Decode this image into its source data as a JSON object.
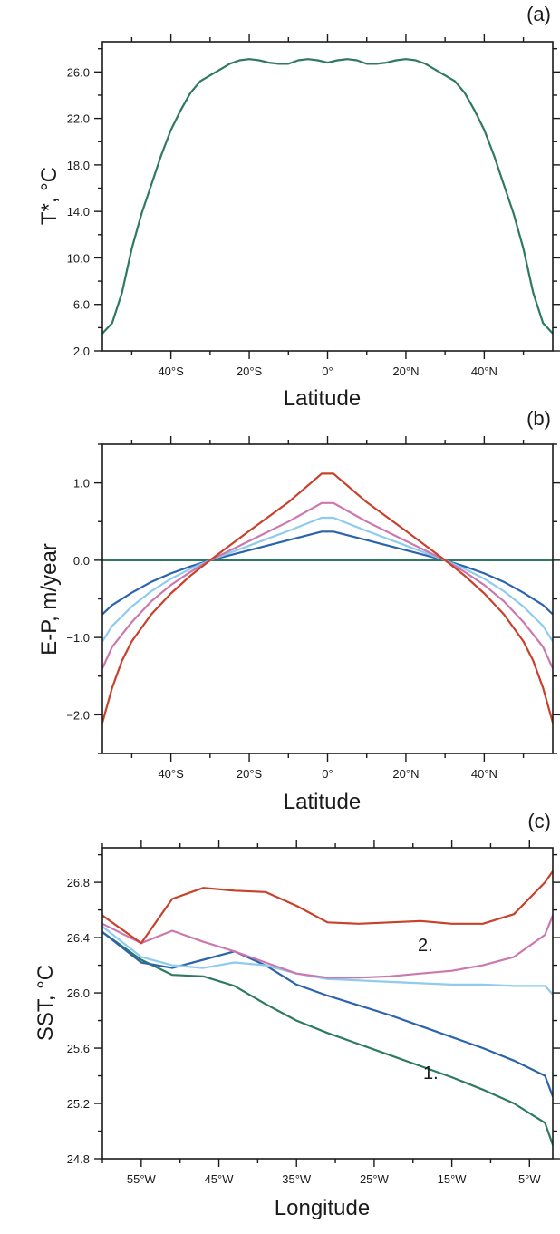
{
  "chart_data": [
    {
      "panel_label": "(a)",
      "type": "line",
      "ylabel": "T*, °C",
      "xlabel": "Latitude",
      "xlim": [
        -57.5,
        57.5
      ],
      "ylim": [
        2.0,
        28.6
      ],
      "x_ticks": [
        -40,
        -20,
        0,
        20,
        40
      ],
      "x_tick_labels": [
        "40°S",
        "20°S",
        "0°",
        "20°N",
        "40°N"
      ],
      "y_ticks": [
        2.0,
        6.0,
        10.0,
        14.0,
        18.0,
        22.0,
        26.0
      ],
      "y_tick_labels": [
        "2.0",
        "6.0",
        "10.0",
        "14.0",
        "18.0",
        "22.0",
        "26.0"
      ],
      "grid": false,
      "series": [
        {
          "color": "#2e7a5f",
          "x": [
            -57.5,
            -55,
            -52.5,
            -50,
            -47.5,
            -45,
            -42.5,
            -40,
            -37.5,
            -35,
            -32.5,
            -30,
            -27.5,
            -25,
            -22.5,
            -20,
            -17.5,
            -15,
            -12.5,
            -10,
            -7.5,
            -5,
            -2.5,
            0,
            2.5,
            5,
            7.5,
            10,
            12.5,
            15,
            17.5,
            20,
            22.5,
            25,
            27.5,
            30,
            32.5,
            35,
            37.5,
            40,
            42.5,
            45,
            47.5,
            50,
            52.5,
            55,
            57.5
          ],
          "y": [
            3.5,
            4.4,
            7.0,
            10.8,
            13.8,
            16.3,
            18.8,
            21.0,
            22.7,
            24.2,
            25.2,
            25.7,
            26.2,
            26.7,
            27.0,
            27.1,
            27.0,
            26.8,
            26.7,
            26.7,
            27.0,
            27.1,
            27.0,
            26.8,
            27.0,
            27.1,
            27.0,
            26.7,
            26.7,
            26.8,
            27.0,
            27.1,
            27.0,
            26.7,
            26.2,
            25.7,
            25.2,
            24.2,
            22.7,
            21.0,
            18.8,
            16.3,
            13.8,
            10.8,
            7.0,
            4.4,
            3.5
          ]
        }
      ]
    },
    {
      "panel_label": "(b)",
      "type": "line",
      "ylabel": "E-P, m/year",
      "xlabel": "Latitude",
      "xlim": [
        -57.5,
        57.5
      ],
      "ylim": [
        -2.5,
        1.5
      ],
      "x_ticks": [
        -40,
        -20,
        0,
        20,
        40
      ],
      "x_tick_labels": [
        "40°S",
        "20°S",
        "0°",
        "20°N",
        "40°N"
      ],
      "y_ticks": [
        -2.0,
        -1.0,
        0.0,
        1.0
      ],
      "y_tick_labels": [
        "−2.0",
        "−1.0",
        "0.0",
        "1.0"
      ],
      "grid": false,
      "series": [
        {
          "color": "#2e7a5f",
          "x": [
            -57.5,
            57.5
          ],
          "y": [
            0.0,
            0.0
          ]
        },
        {
          "color": "#2b64ad",
          "x": [
            -57.5,
            -55,
            -50,
            -45,
            -40,
            -35,
            -30,
            -20,
            -10,
            -1.5,
            1.5,
            10,
            20,
            30,
            35,
            40,
            45,
            50,
            55,
            57.5
          ],
          "y": [
            -0.7,
            -0.58,
            -0.42,
            -0.28,
            -0.17,
            -0.08,
            0.0,
            0.13,
            0.26,
            0.37,
            0.37,
            0.26,
            0.13,
            0.0,
            -0.08,
            -0.17,
            -0.28,
            -0.42,
            -0.58,
            -0.7
          ]
        },
        {
          "color": "#8ecbee",
          "x": [
            -57.5,
            -55,
            -50,
            -45,
            -40,
            -35,
            -30,
            -20,
            -10,
            -1.5,
            1.5,
            10,
            20,
            30,
            35,
            40,
            45,
            50,
            55,
            57.5
          ],
          "y": [
            -1.05,
            -0.85,
            -0.6,
            -0.4,
            -0.24,
            -0.11,
            0.0,
            0.19,
            0.38,
            0.55,
            0.55,
            0.38,
            0.19,
            0.0,
            -0.11,
            -0.24,
            -0.4,
            -0.6,
            -0.85,
            -1.05
          ]
        },
        {
          "color": "#cc78ae",
          "x": [
            -57.5,
            -55,
            -50,
            -45,
            -40,
            -35,
            -30,
            -20,
            -10,
            -1.5,
            1.5,
            10,
            20,
            30,
            35,
            40,
            45,
            50,
            55,
            57.5
          ],
          "y": [
            -1.4,
            -1.12,
            -0.8,
            -0.53,
            -0.32,
            -0.15,
            0.0,
            0.25,
            0.5,
            0.74,
            0.74,
            0.5,
            0.25,
            0.0,
            -0.15,
            -0.32,
            -0.53,
            -0.8,
            -1.12,
            -1.4
          ]
        },
        {
          "color": "#c8412b",
          "x": [
            -57.5,
            -55,
            -52.5,
            -50,
            -45,
            -40,
            -35,
            -30,
            -20,
            -10,
            -1.5,
            1.5,
            10,
            20,
            30,
            35,
            40,
            45,
            50,
            52.5,
            55,
            57.5
          ],
          "y": [
            -2.1,
            -1.65,
            -1.3,
            -1.05,
            -0.7,
            -0.43,
            -0.2,
            0.0,
            0.38,
            0.75,
            1.12,
            1.12,
            0.75,
            0.38,
            0.0,
            -0.2,
            -0.43,
            -0.7,
            -1.05,
            -1.3,
            -1.65,
            -2.1
          ]
        }
      ]
    },
    {
      "panel_label": "(c)",
      "type": "line",
      "ylabel": "SST, °C",
      "xlabel": "Longitude",
      "xlim": [
        -60,
        -2
      ],
      "ylim": [
        24.8,
        27.05
      ],
      "x_ticks": [
        -55,
        -45,
        -35,
        -25,
        -15,
        -5
      ],
      "x_tick_labels": [
        "55°W",
        "45°W",
        "35°W",
        "25°W",
        "15°W",
        "5°W"
      ],
      "y_ticks": [
        24.8,
        25.2,
        25.6,
        26.0,
        26.4,
        26.8
      ],
      "y_tick_labels": [
        "24.8",
        "25.2",
        "25.6",
        "26.0",
        "26.4",
        "26.8"
      ],
      "grid": false,
      "annotations": [
        "2.",
        "1."
      ],
      "series": [
        {
          "color": "#2e7a5f",
          "x": [
            -60,
            -55,
            -51,
            -47,
            -43,
            -39,
            -35,
            -31,
            -27,
            -23,
            -19,
            -15,
            -11,
            -7,
            -3,
            -2
          ],
          "y": [
            26.44,
            26.24,
            26.13,
            26.12,
            26.05,
            25.92,
            25.8,
            25.71,
            25.63,
            25.55,
            25.47,
            25.39,
            25.3,
            25.2,
            25.06,
            24.9
          ]
        },
        {
          "color": "#2b64ad",
          "x": [
            -60,
            -55,
            -51,
            -47,
            -43,
            -39,
            -35,
            -31,
            -27,
            -23,
            -19,
            -15,
            -11,
            -7,
            -3,
            -2
          ],
          "y": [
            26.44,
            26.22,
            26.18,
            26.24,
            26.3,
            26.2,
            26.06,
            25.98,
            25.91,
            25.84,
            25.76,
            25.68,
            25.6,
            25.51,
            25.4,
            25.25
          ]
        },
        {
          "color": "#8ecbee",
          "x": [
            -60,
            -55,
            -51,
            -47,
            -43,
            -39,
            -35,
            -31,
            -27,
            -23,
            -19,
            -15,
            -11,
            -7,
            -3,
            -2
          ],
          "y": [
            26.48,
            26.26,
            26.2,
            26.18,
            26.22,
            26.2,
            26.14,
            26.1,
            26.09,
            26.08,
            26.07,
            26.06,
            26.06,
            26.05,
            26.05,
            25.99
          ]
        },
        {
          "color": "#cc78ae",
          "x": [
            -60,
            -55,
            -51,
            -47,
            -43,
            -39,
            -35,
            -31,
            -27,
            -23,
            -19,
            -15,
            -11,
            -7,
            -3,
            -2
          ],
          "y": [
            26.5,
            26.36,
            26.45,
            26.37,
            26.3,
            26.22,
            26.14,
            26.11,
            26.11,
            26.12,
            26.14,
            26.16,
            26.2,
            26.26,
            26.42,
            26.56
          ]
        },
        {
          "color": "#c8412b",
          "x": [
            -60,
            -55,
            -51,
            -47,
            -43,
            -39,
            -35,
            -31,
            -27,
            -23,
            -19,
            -15,
            -11,
            -7,
            -3,
            -2
          ],
          "y": [
            26.56,
            26.36,
            26.68,
            26.76,
            26.74,
            26.73,
            26.63,
            26.51,
            26.5,
            26.51,
            26.52,
            26.5,
            26.5,
            26.57,
            26.8,
            26.88
          ]
        }
      ]
    }
  ]
}
